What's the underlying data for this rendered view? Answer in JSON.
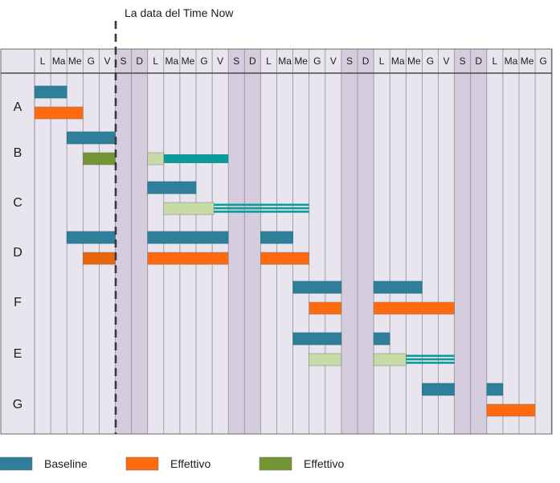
{
  "chart_data": {
    "type": "gantt",
    "title": "",
    "annotation": "La data del Time Now",
    "time_now_after_day": 5,
    "day_headers": [
      "L",
      "Ma",
      "Me",
      "G",
      "V",
      "S",
      "D",
      "L",
      "Ma",
      "Me",
      "G",
      "V",
      "S",
      "D",
      "L",
      "Ma",
      "Me",
      "G",
      "V",
      "S",
      "D",
      "L",
      "Ma",
      "Me",
      "G",
      "V",
      "S",
      "D",
      "L",
      "Ma",
      "Me",
      "G"
    ],
    "weekend_days": [
      5,
      6,
      12,
      13,
      19,
      20,
      26,
      27
    ],
    "colors": {
      "baseline": "#2f7f9a",
      "effettivo": "#ff6a10",
      "effettivo_partial": "#e9660e",
      "effettivo_done": "#739534",
      "effettivo_planned": "#c7dba6",
      "remaining": "#0d9b98",
      "grid_bg": "#e9e5ef",
      "weekend_bg": "#d5ccdd",
      "gridline": "#8f8f8f",
      "time_now": "#3a3a3a"
    },
    "rows": [
      {
        "label": "A",
        "bars": [
          {
            "kind": "baseline",
            "start": 0,
            "end": 2
          },
          {
            "kind": "effettivo",
            "start": 0,
            "end": 3
          }
        ]
      },
      {
        "label": "B",
        "bars": [
          {
            "kind": "baseline",
            "start": 2,
            "end": 5
          },
          {
            "kind": "effettivo_done",
            "start": 3,
            "end": 5
          },
          {
            "kind": "effettivo_planned",
            "start": 7,
            "end": 8
          },
          {
            "kind": "remaining",
            "start": 8,
            "end": 12
          }
        ]
      },
      {
        "label": "C",
        "bars": [
          {
            "kind": "baseline",
            "start": 7,
            "end": 10
          },
          {
            "kind": "effettivo_planned",
            "start": 8,
            "end": 11.1
          },
          {
            "kind": "remaining_striped",
            "start": 11.1,
            "end": 17
          }
        ]
      },
      {
        "label": "D",
        "bars": [
          {
            "kind": "baseline",
            "start": 2,
            "end": 5
          },
          {
            "kind": "effettivo_partial",
            "start": 3,
            "end": 5
          },
          {
            "kind": "baseline",
            "start": 7,
            "end": 12
          },
          {
            "kind": "effettivo",
            "start": 7,
            "end": 12
          },
          {
            "kind": "baseline",
            "start": 14,
            "end": 16
          },
          {
            "kind": "effettivo",
            "start": 14,
            "end": 17
          }
        ]
      },
      {
        "label": "F",
        "bars": [
          {
            "kind": "baseline",
            "start": 16,
            "end": 19
          },
          {
            "kind": "effettivo",
            "start": 17,
            "end": 19
          },
          {
            "kind": "baseline",
            "start": 21,
            "end": 24
          },
          {
            "kind": "effettivo",
            "start": 21,
            "end": 26
          }
        ]
      },
      {
        "label": "E",
        "bars": [
          {
            "kind": "baseline",
            "start": 16,
            "end": 19
          },
          {
            "kind": "effettivo_planned",
            "start": 17,
            "end": 19
          },
          {
            "kind": "baseline",
            "start": 21,
            "end": 22
          },
          {
            "kind": "effettivo_planned",
            "start": 21,
            "end": 23
          },
          {
            "kind": "remaining_striped",
            "start": 23,
            "end": 26
          }
        ]
      },
      {
        "label": "G",
        "bars": [
          {
            "kind": "baseline",
            "start": 24,
            "end": 26
          },
          {
            "kind": "baseline",
            "start": 28,
            "end": 29
          },
          {
            "kind": "effettivo",
            "start": 28,
            "end": 31
          }
        ]
      }
    ],
    "legend": [
      {
        "label": "Baseline",
        "color": "#2f7f9a"
      },
      {
        "label": "Effettivo",
        "color": "#ff6a10"
      },
      {
        "label": "Effettivo",
        "color": "#739534"
      }
    ]
  }
}
